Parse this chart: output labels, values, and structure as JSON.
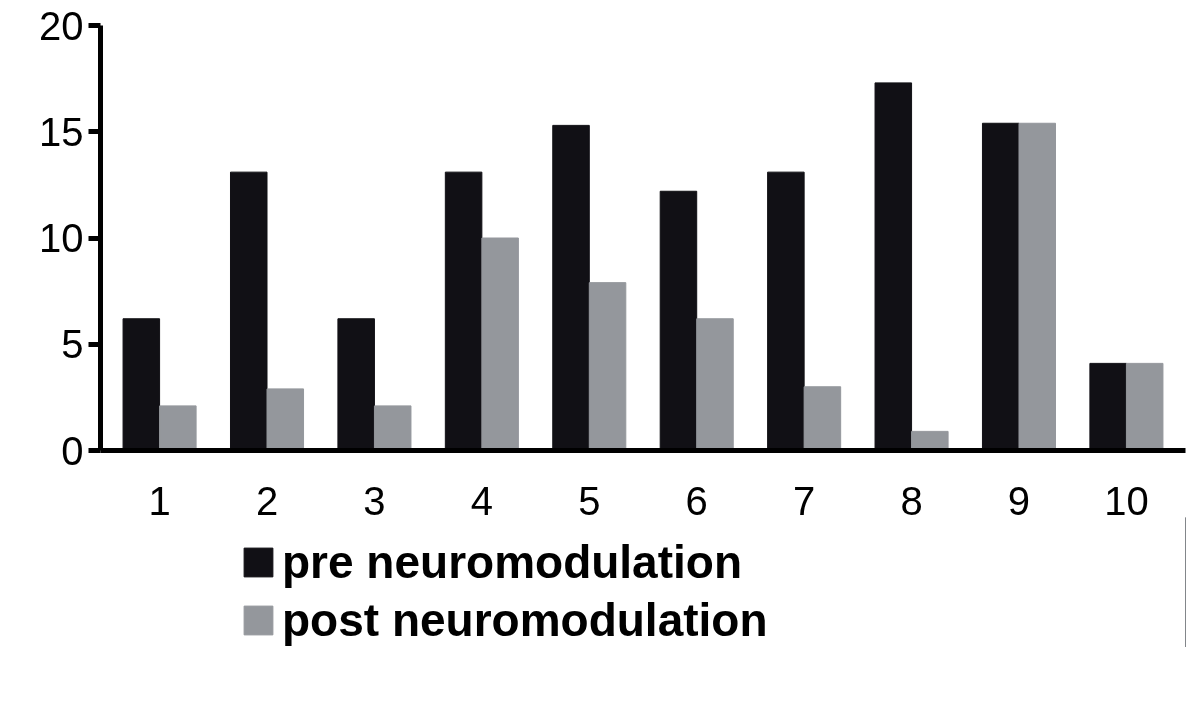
{
  "chart_data": {
    "type": "bar",
    "categories": [
      "1",
      "2",
      "3",
      "4",
      "5",
      "6",
      "7",
      "8",
      "9",
      "10"
    ],
    "series": [
      {
        "name": "pre neuromodulation",
        "color": "#111015",
        "values": [
          6.2,
          13.1,
          6.2,
          13.1,
          15.3,
          12.2,
          13.1,
          17.3,
          15.4,
          4.1
        ]
      },
      {
        "name": "post neuromodulation",
        "color": "#94979c",
        "values": [
          2.1,
          2.9,
          2.1,
          10,
          7.9,
          6.2,
          3.0,
          0.9,
          15.4,
          4.1
        ]
      }
    ],
    "ylim": [
      0,
      20
    ],
    "yticks": [
      0,
      5,
      10,
      15,
      20
    ],
    "legend": "bottom"
  }
}
